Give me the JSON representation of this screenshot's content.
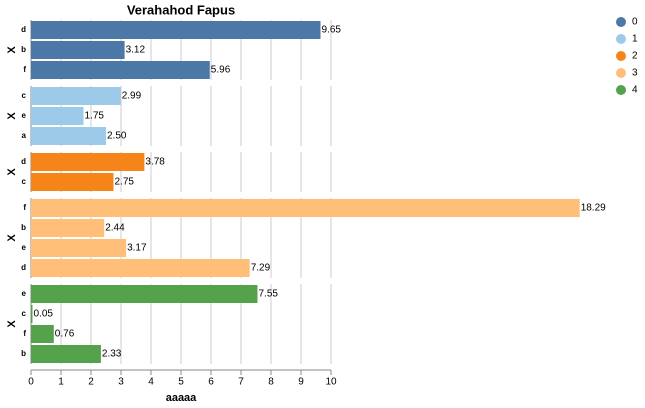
{
  "chart_data": {
    "type": "bar",
    "title": "Verahahod Fapus",
    "x_label": "aaaaa",
    "facet_label": "X",
    "xlim": [
      0,
      10
    ],
    "xticks": [
      0,
      1,
      2,
      3,
      4,
      5,
      6,
      7,
      8,
      9,
      10
    ],
    "grid": true,
    "legend": "top-right",
    "series": [
      {
        "name": "0",
        "color": "#4c78a8",
        "categories": [
          "d",
          "b",
          "f"
        ],
        "values": [
          9.65,
          3.12,
          5.96
        ],
        "value_labels": [
          "9.65",
          "3.12",
          "5.96"
        ]
      },
      {
        "name": "1",
        "color": "#9ecae9",
        "categories": [
          "c",
          "e",
          "a"
        ],
        "values": [
          2.99,
          1.75,
          2.5
        ],
        "value_labels": [
          "2.99",
          "1.75",
          "2.50"
        ]
      },
      {
        "name": "2",
        "color": "#f58518",
        "categories": [
          "d",
          "c"
        ],
        "values": [
          3.78,
          2.75
        ],
        "value_labels": [
          "3.78",
          "2.75"
        ]
      },
      {
        "name": "3",
        "color": "#ffbf79",
        "categories": [
          "f",
          "b",
          "e",
          "d"
        ],
        "values": [
          18.29,
          2.44,
          3.17,
          7.29
        ],
        "value_labels": [
          "18.29",
          "2.44",
          "3.17",
          "7.29"
        ]
      },
      {
        "name": "4",
        "color": "#54a24b",
        "categories": [
          "e",
          "c",
          "f",
          "b"
        ],
        "values": [
          7.55,
          0.05,
          0.76,
          2.33
        ],
        "value_labels": [
          "7.55",
          "0.05",
          "0.76",
          "2.33"
        ]
      }
    ]
  }
}
